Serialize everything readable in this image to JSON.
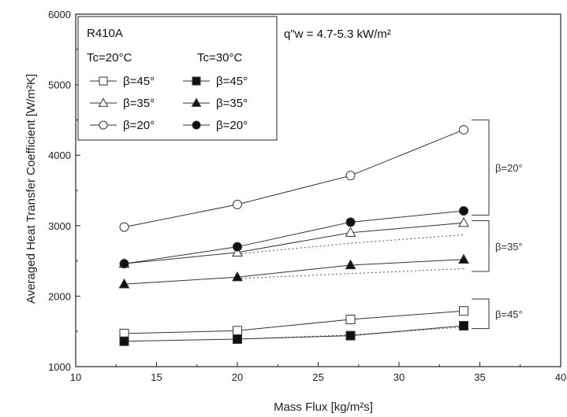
{
  "chart_data": {
    "type": "line",
    "xlabel": "Mass Flux [kg/m²s]",
    "ylabel": "Averaged Heat Transfer Coefficient [W/m²K]",
    "xlim": [
      10,
      40
    ],
    "ylim": [
      1000,
      6000
    ],
    "xticks": [
      10,
      15,
      20,
      25,
      30,
      35,
      40
    ],
    "yticks": [
      1000,
      2000,
      3000,
      4000,
      5000,
      6000
    ],
    "grid": false,
    "legend_placement": "top-left",
    "refrigerant": "R410A",
    "heat_flux_label": "q\"w = 4.7-5.3 kW/m²",
    "legend_group_labels": [
      "Tc=20°C",
      "Tc=30°C"
    ],
    "series": [
      {
        "name": "β=45°",
        "group": "Tc=20°C",
        "marker": "square-open",
        "x": [
          13,
          20,
          27,
          34
        ],
        "y": [
          1470,
          1510,
          1670,
          1790
        ]
      },
      {
        "name": "β=35°",
        "group": "Tc=20°C",
        "marker": "triangle-open",
        "x": [
          13,
          20,
          27,
          34
        ],
        "y": [
          2460,
          2620,
          2900,
          3040
        ]
      },
      {
        "name": "β=20°",
        "group": "Tc=20°C",
        "marker": "circle-open",
        "x": [
          13,
          20,
          27,
          34
        ],
        "y": [
          2980,
          3300,
          3710,
          4360
        ]
      },
      {
        "name": "β=45°",
        "group": "Tc=30°C",
        "marker": "square-filled",
        "x": [
          13,
          20,
          27,
          34
        ],
        "y": [
          1360,
          1390,
          1440,
          1580
        ]
      },
      {
        "name": "β=35°",
        "group": "Tc=30°C",
        "marker": "triangle-filled",
        "x": [
          13,
          20,
          27,
          34
        ],
        "y": [
          2170,
          2270,
          2440,
          2520
        ]
      },
      {
        "name": "β=20°",
        "group": "Tc=30°C",
        "marker": "circle-filled",
        "x": [
          13,
          20,
          27,
          34
        ],
        "y": [
          2460,
          2700,
          3050,
          3210
        ]
      }
    ],
    "dotted_lines": [
      {
        "x": [
          20,
          27,
          34
        ],
        "y": [
          2600,
          2750,
          2870
        ]
      },
      {
        "x": [
          20,
          27,
          34
        ],
        "y": [
          2250,
          2320,
          2390
        ]
      },
      {
        "x": [
          20,
          27,
          34
        ],
        "y": [
          1390,
          1450,
          1560
        ]
      }
    ],
    "brackets": [
      {
        "label": "β=20°",
        "y_range": [
          3150,
          4500
        ]
      },
      {
        "label": "β=35°",
        "y_range": [
          2350,
          3070
        ]
      },
      {
        "label": "β=45°",
        "y_range": [
          1540,
          1960
        ]
      }
    ]
  }
}
